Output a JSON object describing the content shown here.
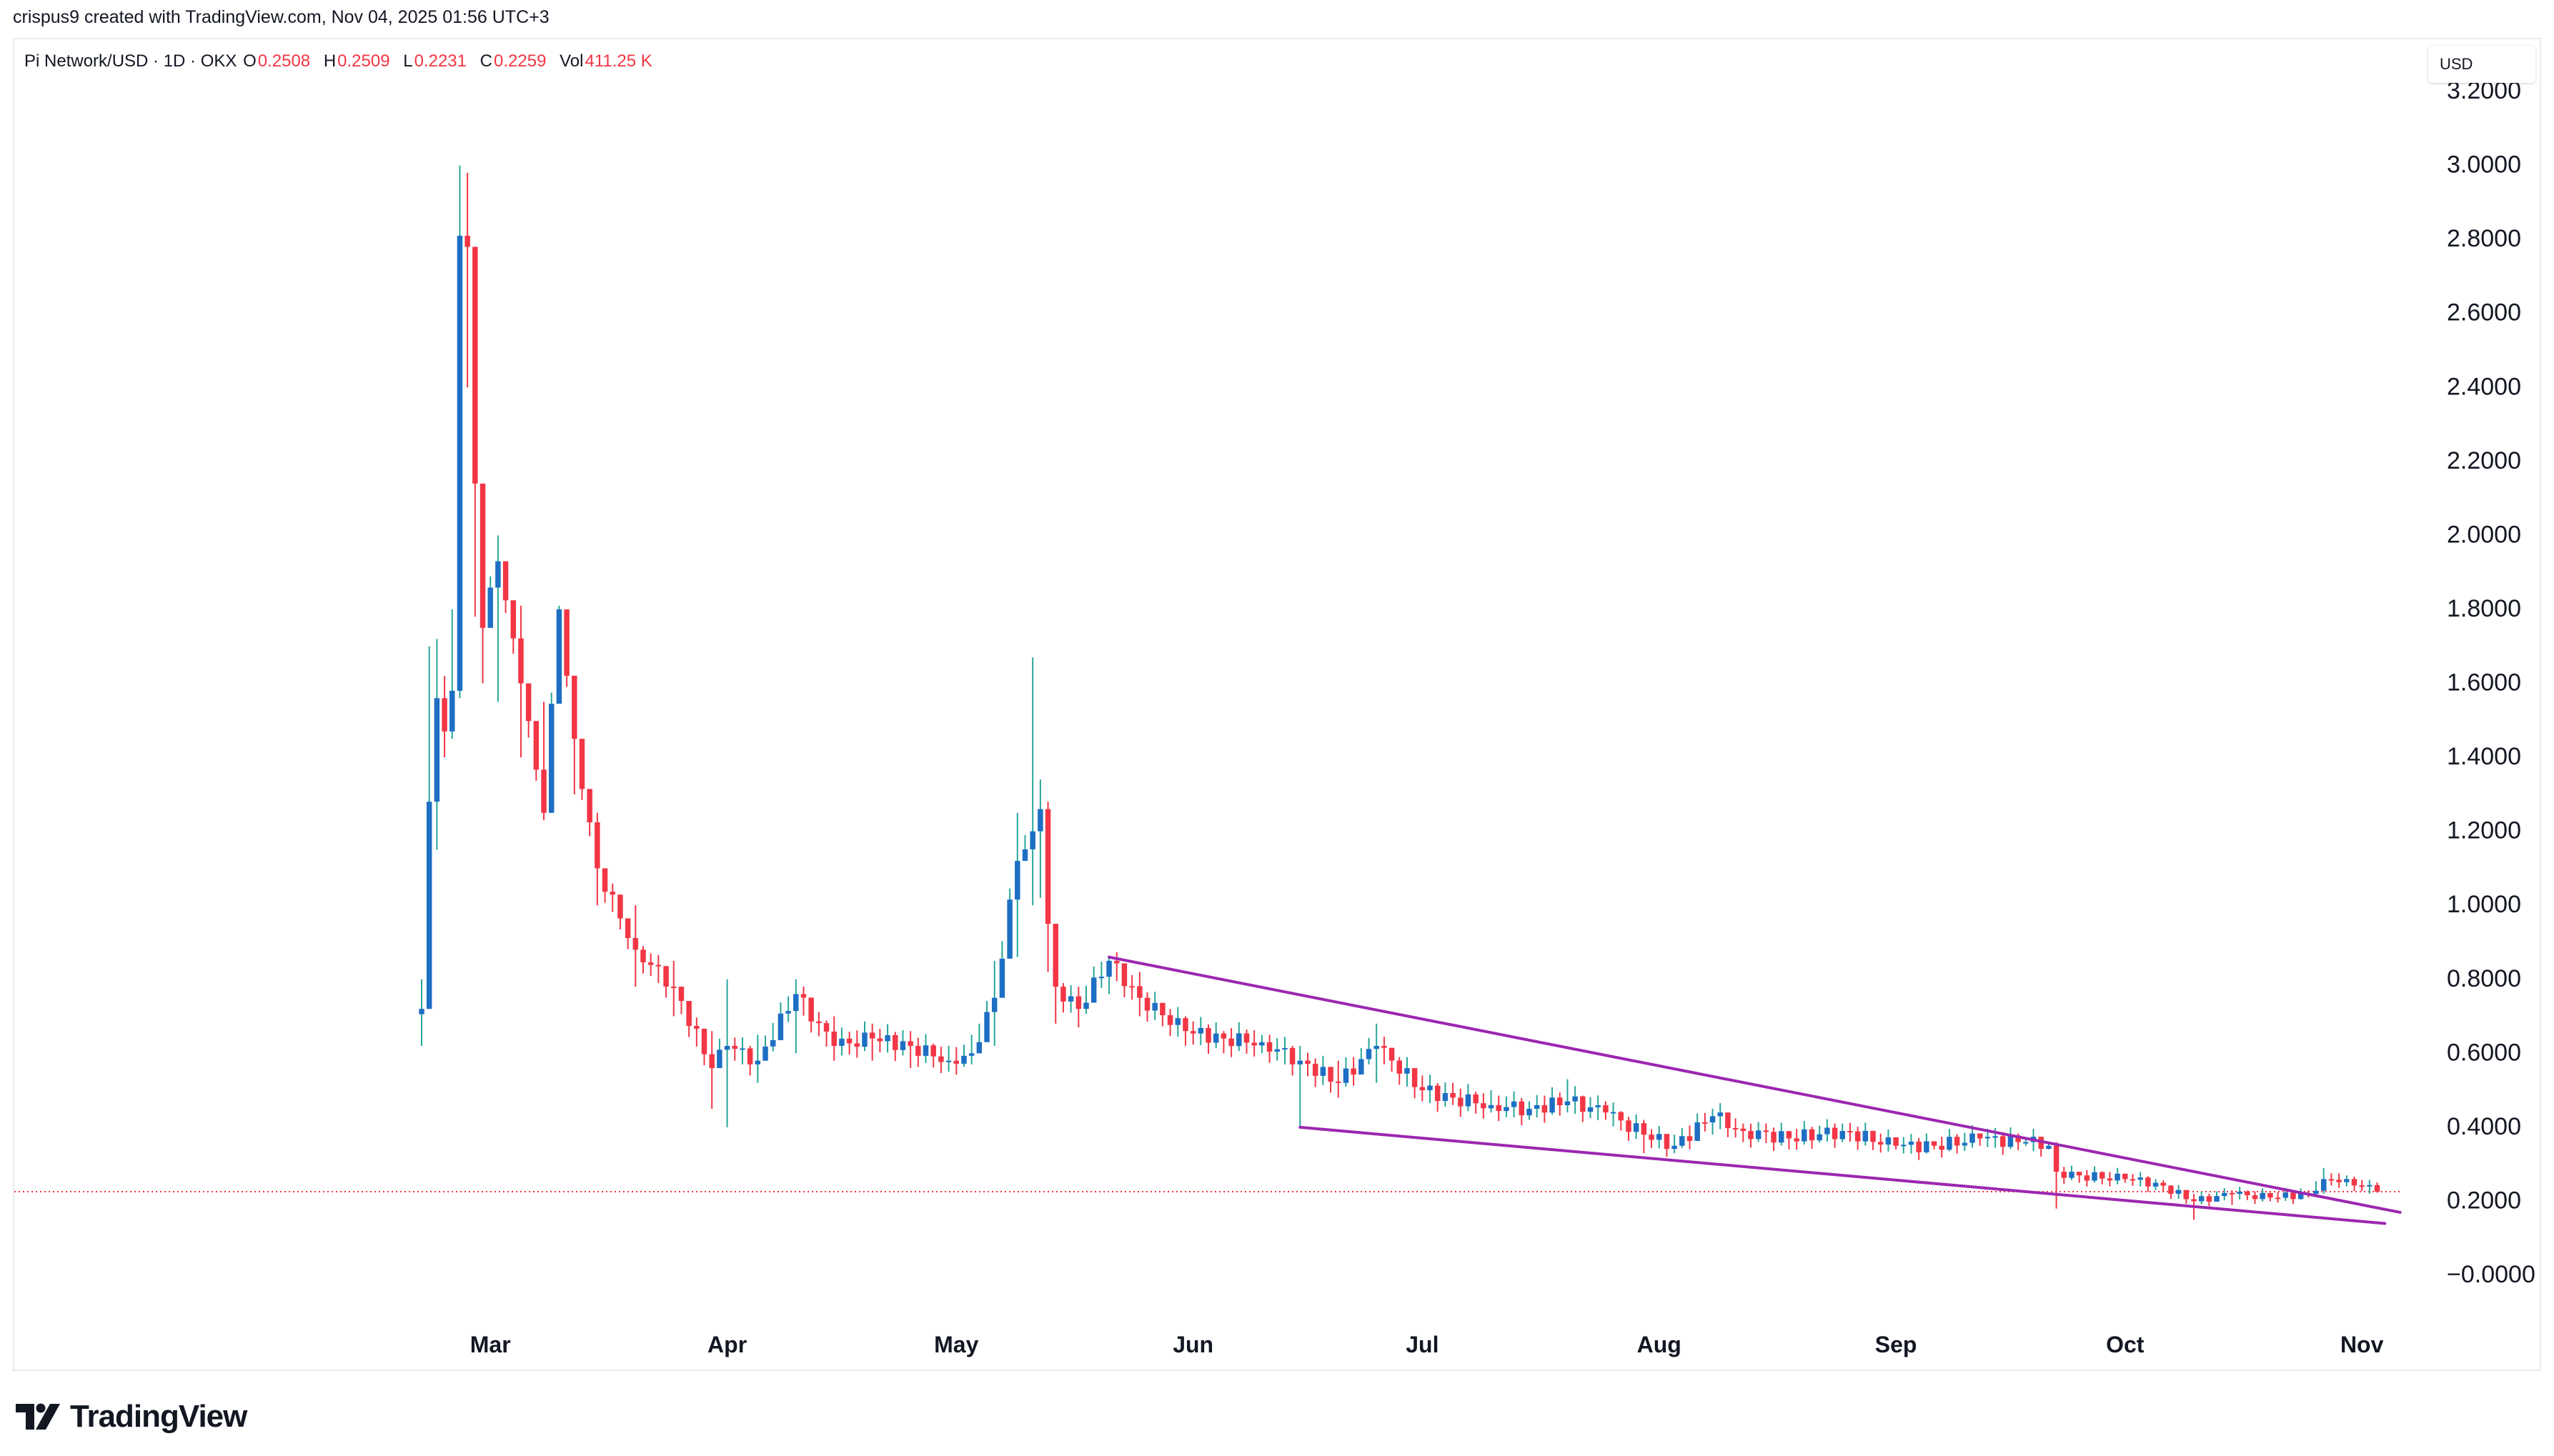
{
  "header": {
    "credit": "crispus9 created with TradingView.com, Nov 04, 2025 01:56 UTC+3"
  },
  "legend": {
    "symbol": "Pi Network/USD · 1D · OKX",
    "o_label": "O",
    "o_value": "0.2508",
    "h_label": "H",
    "h_value": "0.2509",
    "l_label": "L",
    "l_value": "0.2231",
    "c_label": "C",
    "c_value": "0.2259",
    "vol_label": "Vol",
    "vol_value": "411.25 K"
  },
  "price_axis": {
    "currency": "USD"
  },
  "brand": {
    "name": "TradingView",
    "logo": "tradingview-logo-icon"
  },
  "colors": {
    "up": "#2962ff",
    "up_body": "#1e6fc4",
    "down": "#f23645",
    "wick_up": "#26a69a",
    "trendline": "#9c27b0",
    "last_price_line": "#f23645",
    "axis_text": "#131722",
    "frame": "#e8eaee"
  },
  "chart_data": {
    "type": "candlestick",
    "title": "Pi Network/USD · 1D · OKX",
    "x_axis": {
      "type": "date",
      "tick_labels": [
        "Mar",
        "Apr",
        "May",
        "Jun",
        "Jul",
        "Aug",
        "Sep",
        "Oct",
        "Nov"
      ],
      "tick_dates": [
        "2025-03-01",
        "2025-04-01",
        "2025-05-01",
        "2025-06-01",
        "2025-07-01",
        "2025-08-01",
        "2025-09-01",
        "2025-10-01",
        "2025-11-01"
      ],
      "range": [
        "2025-02-20",
        "2025-11-08"
      ]
    },
    "y_axis": {
      "label": "USD",
      "tick_labels": [
        "−0.0000",
        "0.2000",
        "0.4000",
        "0.6000",
        "0.8000",
        "1.0000",
        "1.2000",
        "1.4000",
        "1.6000",
        "1.8000",
        "2.0000",
        "2.2000",
        "2.4000",
        "2.6000",
        "2.8000",
        "3.0000",
        "3.2000"
      ],
      "range": [
        -0.1,
        3.28
      ],
      "grid": false
    },
    "last_price": 0.2259,
    "keyframes": [
      [
        "2025-02-20",
        0.72,
        0.8,
        0.62
      ],
      [
        "2025-02-21",
        1.28,
        1.7,
        0.72
      ],
      [
        "2025-02-22",
        1.56,
        1.72,
        1.15
      ],
      [
        "2025-02-23",
        1.47,
        1.62,
        1.4
      ],
      [
        "2025-02-24",
        1.58,
        1.8,
        1.45
      ],
      [
        "2025-02-25",
        2.81,
        3.0,
        1.56
      ],
      [
        "2025-02-26",
        2.78,
        2.98,
        2.4
      ],
      [
        "2025-02-27",
        2.14,
        2.78,
        1.78
      ],
      [
        "2025-02-28",
        1.75,
        2.1,
        1.6
      ],
      [
        "2025-03-02",
        1.93,
        2.0,
        1.55
      ],
      [
        "2025-03-05",
        1.6,
        1.81,
        1.4
      ],
      [
        "2025-03-08",
        1.25,
        1.55,
        1.23
      ],
      [
        "2025-03-10",
        1.8,
        1.81,
        1.55
      ],
      [
        "2025-03-12",
        1.45,
        1.6,
        1.3
      ],
      [
        "2025-03-15",
        1.1,
        1.25,
        1.0
      ],
      [
        "2025-03-20",
        0.88,
        1.0,
        0.78
      ],
      [
        "2025-03-25",
        0.78,
        0.85,
        0.7
      ],
      [
        "2025-03-30",
        0.56,
        0.66,
        0.45
      ],
      [
        "2025-04-01",
        0.62,
        0.8,
        0.4
      ],
      [
        "2025-04-05",
        0.58,
        0.65,
        0.52
      ],
      [
        "2025-04-10",
        0.76,
        0.8,
        0.6
      ],
      [
        "2025-04-15",
        0.62,
        0.7,
        0.58
      ],
      [
        "2025-04-20",
        0.64,
        0.68,
        0.58
      ],
      [
        "2025-04-25",
        0.62,
        0.66,
        0.56
      ],
      [
        "2025-04-30",
        0.58,
        0.62,
        0.55
      ],
      [
        "2025-05-03",
        0.6,
        0.65,
        0.57
      ],
      [
        "2025-05-06",
        0.75,
        0.85,
        0.62
      ],
      [
        "2025-05-09",
        1.12,
        1.25,
        0.86
      ],
      [
        "2025-05-11",
        1.2,
        1.67,
        1.0
      ],
      [
        "2025-05-12",
        1.26,
        1.34,
        1.02
      ],
      [
        "2025-05-13",
        0.95,
        1.28,
        0.82
      ],
      [
        "2025-05-14",
        0.78,
        0.95,
        0.68
      ],
      [
        "2025-05-17",
        0.72,
        0.78,
        0.67
      ],
      [
        "2025-05-21",
        0.85,
        0.86,
        0.76
      ],
      [
        "2025-05-25",
        0.75,
        0.82,
        0.7
      ],
      [
        "2025-05-31",
        0.66,
        0.7,
        0.62
      ],
      [
        "2025-06-05",
        0.64,
        0.66,
        0.6
      ],
      [
        "2025-06-10",
        0.63,
        0.65,
        0.6
      ],
      [
        "2025-06-15",
        0.58,
        0.62,
        0.4
      ],
      [
        "2025-06-20",
        0.52,
        0.58,
        0.48
      ],
      [
        "2025-06-25",
        0.62,
        0.68,
        0.52
      ],
      [
        "2025-07-01",
        0.5,
        0.54,
        0.47
      ],
      [
        "2025-07-05",
        0.48,
        0.52,
        0.46
      ],
      [
        "2025-07-10",
        0.46,
        0.5,
        0.44
      ],
      [
        "2025-07-15",
        0.45,
        0.47,
        0.42
      ],
      [
        "2025-07-20",
        0.47,
        0.53,
        0.44
      ],
      [
        "2025-07-25",
        0.44,
        0.47,
        0.42
      ],
      [
        "2025-07-30",
        0.38,
        0.42,
        0.33
      ],
      [
        "2025-08-03",
        0.35,
        0.38,
        0.33
      ],
      [
        "2025-08-08",
        0.43,
        0.45,
        0.38
      ],
      [
        "2025-08-12",
        0.39,
        0.41,
        0.36
      ],
      [
        "2025-08-18",
        0.37,
        0.39,
        0.34
      ],
      [
        "2025-08-25",
        0.39,
        0.41,
        0.36
      ],
      [
        "2025-09-01",
        0.35,
        0.37,
        0.34
      ],
      [
        "2025-09-06",
        0.35,
        0.36,
        0.34
      ],
      [
        "2025-09-12",
        0.37,
        0.38,
        0.35
      ],
      [
        "2025-09-18",
        0.36,
        0.37,
        0.35
      ],
      [
        "2025-09-21",
        0.35,
        0.36,
        0.34
      ],
      [
        "2025-09-22",
        0.28,
        0.36,
        0.18
      ],
      [
        "2025-09-25",
        0.27,
        0.28,
        0.25
      ],
      [
        "2025-10-01",
        0.26,
        0.27,
        0.25
      ],
      [
        "2025-10-05",
        0.25,
        0.26,
        0.23
      ],
      [
        "2025-10-10",
        0.2,
        0.22,
        0.15
      ],
      [
        "2025-10-15",
        0.22,
        0.23,
        0.19
      ],
      [
        "2025-10-20",
        0.21,
        0.22,
        0.2
      ],
      [
        "2025-10-25",
        0.22,
        0.23,
        0.21
      ],
      [
        "2025-10-27",
        0.26,
        0.29,
        0.22
      ],
      [
        "2025-10-30",
        0.26,
        0.27,
        0.24
      ],
      [
        "2025-11-03",
        0.2259,
        0.2509,
        0.2231
      ]
    ],
    "trendlines": [
      {
        "from": [
          "2025-05-21",
          0.86
        ],
        "to": [
          "2025-11-06",
          0.17
        ]
      },
      {
        "from": [
          "2025-06-15",
          0.4
        ],
        "to": [
          "2025-11-04",
          0.14
        ]
      }
    ]
  }
}
